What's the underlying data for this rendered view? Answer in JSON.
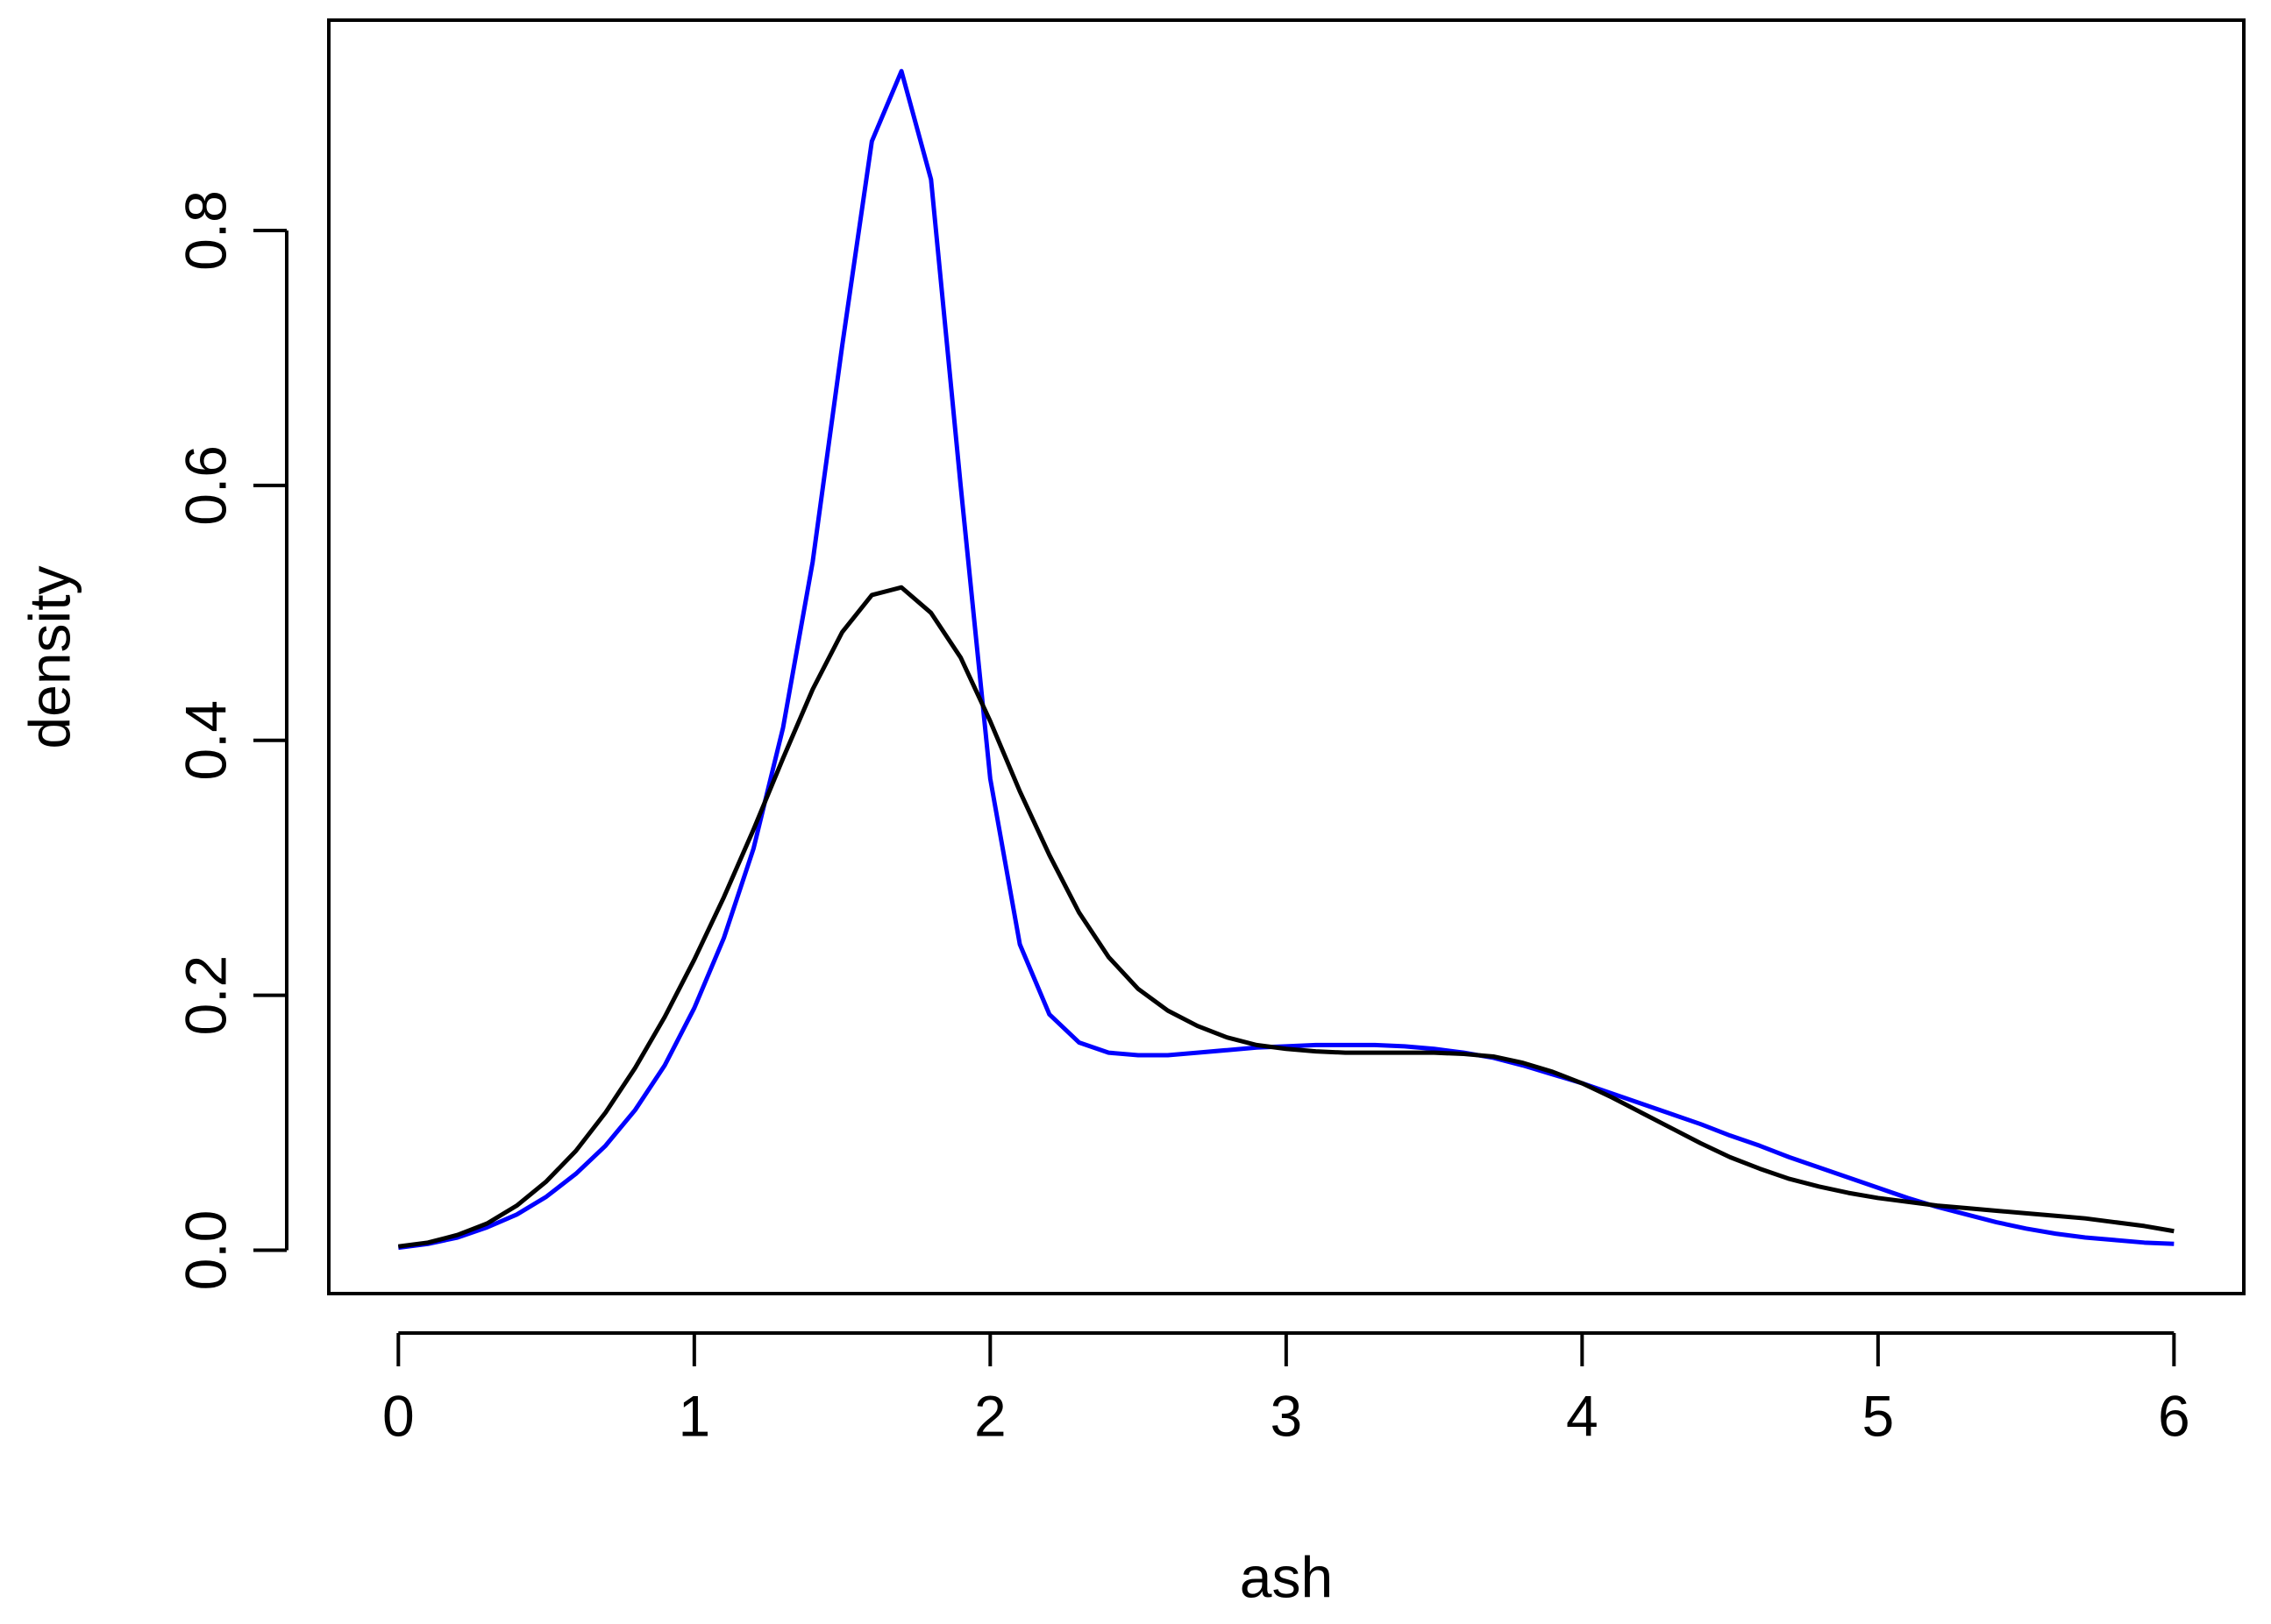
{
  "chart_data": {
    "type": "line",
    "x_label": "ash",
    "y_label": "density",
    "x": [
      0,
      0.1,
      0.2,
      0.3,
      0.4,
      0.5,
      0.6,
      0.7,
      0.8,
      0.9,
      1,
      1.1,
      1.2,
      1.3,
      1.4,
      1.5,
      1.6,
      1.7,
      1.8,
      1.9,
      2,
      2.1,
      2.2,
      2.3,
      2.4,
      2.5,
      2.6,
      2.7,
      2.8,
      2.9,
      3,
      3.1,
      3.2,
      3.3,
      3.4,
      3.5,
      3.6,
      3.7,
      3.8,
      3.9,
      4,
      4.1,
      4.2,
      4.3,
      4.4,
      4.5,
      4.6,
      4.7,
      4.8,
      4.9,
      5,
      5.1,
      5.2,
      5.3,
      5.4,
      5.5,
      5.6,
      5.7,
      5.8,
      5.9,
      6
    ],
    "series": [
      {
        "color": "#0000ff",
        "values": [
          0.002,
          0.005,
          0.01,
          0.018,
          0.028,
          0.042,
          0.06,
          0.082,
          0.11,
          0.145,
          0.19,
          0.245,
          0.315,
          0.41,
          0.54,
          0.71,
          0.87,
          0.925,
          0.84,
          0.6,
          0.37,
          0.24,
          0.185,
          0.163,
          0.155,
          0.153,
          0.153,
          0.155,
          0.157,
          0.159,
          0.16,
          0.161,
          0.161,
          0.161,
          0.16,
          0.158,
          0.155,
          0.151,
          0.145,
          0.138,
          0.131,
          0.123,
          0.115,
          0.107,
          0.099,
          0.09,
          0.082,
          0.073,
          0.065,
          0.057,
          0.049,
          0.041,
          0.034,
          0.028,
          0.022,
          0.017,
          0.013,
          0.01,
          0.008,
          0.006,
          0.005
        ]
      },
      {
        "color": "#000000",
        "values": [
          0.003,
          0.006,
          0.012,
          0.021,
          0.035,
          0.054,
          0.078,
          0.108,
          0.143,
          0.183,
          0.228,
          0.277,
          0.33,
          0.386,
          0.44,
          0.485,
          0.514,
          0.52,
          0.5,
          0.465,
          0.415,
          0.36,
          0.31,
          0.265,
          0.23,
          0.205,
          0.188,
          0.176,
          0.167,
          0.161,
          0.158,
          0.156,
          0.155,
          0.155,
          0.155,
          0.155,
          0.154,
          0.152,
          0.147,
          0.14,
          0.131,
          0.12,
          0.108,
          0.096,
          0.084,
          0.073,
          0.064,
          0.056,
          0.05,
          0.045,
          0.041,
          0.038,
          0.035,
          0.033,
          0.031,
          0.029,
          0.027,
          0.025,
          0.022,
          0.019,
          0.015
        ]
      }
    ],
    "xlim": [
      -0.235,
      6.236
    ],
    "ylim": [
      -0.034,
      0.965
    ],
    "xticks": [
      0,
      1,
      2,
      3,
      4,
      5,
      6
    ],
    "yticks": [
      {
        "value": 0,
        "label": "0.0"
      },
      0.2,
      0.4,
      0.6,
      0.8
    ]
  }
}
